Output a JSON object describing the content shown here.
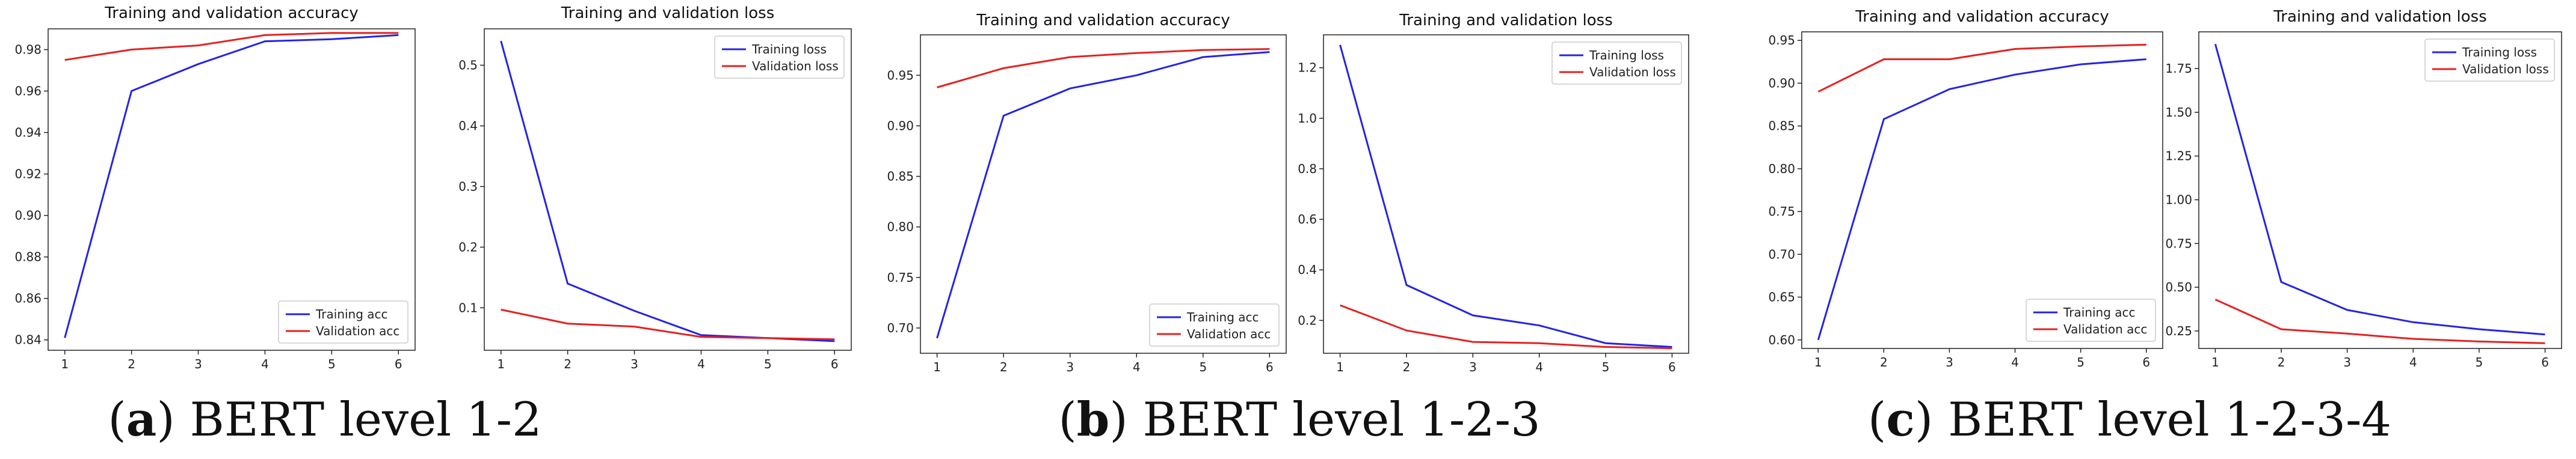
{
  "colors": {
    "training": "#2323e6",
    "validation": "#e62020",
    "axes": "#222222"
  },
  "chart_data": [
    {
      "type": "line",
      "panel": "a-accuracy",
      "title": "Training and validation accuracy",
      "x": [
        1,
        2,
        3,
        4,
        5,
        6
      ],
      "xticks": [
        "1",
        "2",
        "3",
        "4",
        "5",
        "6"
      ],
      "ylim": [
        0.835,
        0.99
      ],
      "yticks": [
        0.84,
        0.86,
        0.88,
        0.9,
        0.92,
        0.94,
        0.96,
        0.98
      ],
      "ytick_labels": [
        "0.84",
        "0.86",
        "0.88",
        "0.90",
        "0.92",
        "0.94",
        "0.96",
        "0.98"
      ],
      "legend_position": "bottom-right",
      "series": [
        {
          "name": "Training acc",
          "color": "#2323e6",
          "values": [
            0.841,
            0.96,
            0.973,
            0.984,
            0.985,
            0.987
          ]
        },
        {
          "name": "Validation acc",
          "color": "#e62020",
          "values": [
            0.975,
            0.98,
            0.982,
            0.987,
            0.988,
            0.988
          ]
        }
      ]
    },
    {
      "type": "line",
      "panel": "a-loss",
      "title": "Training and validation loss",
      "x": [
        1,
        2,
        3,
        4,
        5,
        6
      ],
      "xticks": [
        "1",
        "2",
        "3",
        "4",
        "5",
        "6"
      ],
      "ylim": [
        0.03,
        0.56
      ],
      "yticks": [
        0.1,
        0.2,
        0.3,
        0.4,
        0.5
      ],
      "ytick_labels": [
        "0.1",
        "0.2",
        "0.3",
        "0.4",
        "0.5"
      ],
      "legend_position": "top-right",
      "series": [
        {
          "name": "Training loss",
          "color": "#2323e6",
          "values": [
            0.54,
            0.14,
            0.095,
            0.055,
            0.05,
            0.045
          ]
        },
        {
          "name": "Validation loss",
          "color": "#e62020",
          "values": [
            0.097,
            0.074,
            0.069,
            0.052,
            0.05,
            0.048
          ]
        }
      ]
    },
    {
      "type": "line",
      "panel": "b-accuracy",
      "title": "Training and validation accuracy",
      "x": [
        1,
        2,
        3,
        4,
        5,
        6
      ],
      "xticks": [
        "1",
        "2",
        "3",
        "4",
        "5",
        "6"
      ],
      "ylim": [
        0.675,
        0.99
      ],
      "yticks": [
        0.7,
        0.75,
        0.8,
        0.85,
        0.9,
        0.95
      ],
      "ytick_labels": [
        "0.70",
        "0.75",
        "0.80",
        "0.85",
        "0.90",
        "0.95"
      ],
      "legend_position": "bottom-right",
      "series": [
        {
          "name": "Training acc",
          "color": "#2323e6",
          "values": [
            0.69,
            0.91,
            0.937,
            0.95,
            0.968,
            0.973
          ]
        },
        {
          "name": "Validation acc",
          "color": "#e62020",
          "values": [
            0.938,
            0.957,
            0.968,
            0.972,
            0.975,
            0.976
          ]
        }
      ]
    },
    {
      "type": "line",
      "panel": "b-loss",
      "title": "Training and validation loss",
      "x": [
        1,
        2,
        3,
        4,
        5,
        6
      ],
      "xticks": [
        "1",
        "2",
        "3",
        "4",
        "5",
        "6"
      ],
      "ylim": [
        0.07,
        1.33
      ],
      "yticks": [
        0.2,
        0.4,
        0.6,
        0.8,
        1.0,
        1.2
      ],
      "ytick_labels": [
        "0.2",
        "0.4",
        "0.6",
        "0.8",
        "1.0",
        "1.2"
      ],
      "legend_position": "top-right",
      "series": [
        {
          "name": "Training loss",
          "color": "#2323e6",
          "values": [
            1.29,
            0.34,
            0.22,
            0.18,
            0.11,
            0.095
          ]
        },
        {
          "name": "Validation loss",
          "color": "#e62020",
          "values": [
            0.26,
            0.16,
            0.115,
            0.11,
            0.095,
            0.09
          ]
        }
      ]
    },
    {
      "type": "line",
      "panel": "c-accuracy",
      "title": "Training and validation accuracy",
      "x": [
        1,
        2,
        3,
        4,
        5,
        6
      ],
      "xticks": [
        "1",
        "2",
        "3",
        "4",
        "5",
        "6"
      ],
      "ylim": [
        0.59,
        0.96
      ],
      "yticks": [
        0.6,
        0.65,
        0.7,
        0.75,
        0.8,
        0.85,
        0.9,
        0.95
      ],
      "ytick_labels": [
        "0.60",
        "0.65",
        "0.70",
        "0.75",
        "0.80",
        "0.85",
        "0.90",
        "0.95"
      ],
      "legend_position": "bottom-right",
      "series": [
        {
          "name": "Training acc",
          "color": "#2323e6",
          "values": [
            0.6,
            0.858,
            0.893,
            0.91,
            0.922,
            0.928
          ]
        },
        {
          "name": "Validation acc",
          "color": "#e62020",
          "values": [
            0.89,
            0.928,
            0.928,
            0.94,
            0.943,
            0.945
          ]
        }
      ]
    },
    {
      "type": "line",
      "panel": "c-loss",
      "title": "Training and validation loss",
      "x": [
        1,
        2,
        3,
        4,
        5,
        6
      ],
      "xticks": [
        "1",
        "2",
        "3",
        "4",
        "5",
        "6"
      ],
      "ylim": [
        0.15,
        1.96
      ],
      "yticks": [
        0.25,
        0.5,
        0.75,
        1.0,
        1.25,
        1.5,
        1.75
      ],
      "ytick_labels": [
        "0.25",
        "0.50",
        "0.75",
        "1.00",
        "1.25",
        "1.50",
        "1.75"
      ],
      "legend_position": "top-right",
      "series": [
        {
          "name": "Training loss",
          "color": "#2323e6",
          "values": [
            1.89,
            0.53,
            0.37,
            0.3,
            0.26,
            0.23
          ]
        },
        {
          "name": "Validation loss",
          "color": "#e62020",
          "values": [
            0.43,
            0.26,
            0.235,
            0.205,
            0.19,
            0.18
          ]
        }
      ]
    }
  ],
  "captions": [
    {
      "letter": "a",
      "open": "(",
      "close": ")",
      "text": " BERT level 1-2"
    },
    {
      "letter": "b",
      "open": "(",
      "close": ")",
      "text": " BERT level 1-2-3"
    },
    {
      "letter": "c",
      "open": "(",
      "close": ")",
      "text": " BERT level 1-2-3-4"
    }
  ]
}
